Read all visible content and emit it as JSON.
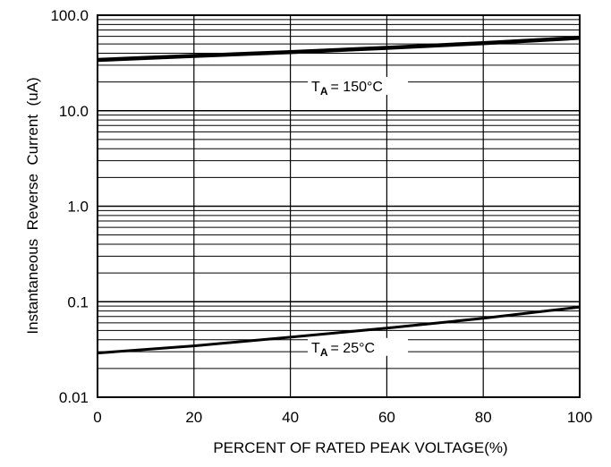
{
  "chart_data": {
    "type": "line",
    "title": "",
    "xlabel": "PERCENT OF RATED PEAK VOLTAGE(%)",
    "ylabel": "Instantaneous  Reverse  Current  (uA)",
    "xlim": [
      0,
      100
    ],
    "ylim": [
      0.01,
      100
    ],
    "yscale": "log",
    "grid": true,
    "x_ticks": [
      0,
      20,
      40,
      60,
      80,
      100
    ],
    "x_tick_labels": [
      "0",
      "20",
      "40",
      "60",
      "80",
      "100"
    ],
    "y_ticks": [
      0.01,
      0.1,
      1,
      10,
      100
    ],
    "y_tick_labels": [
      "0.01",
      "0.1",
      "1.0",
      "10.0",
      "100.0"
    ],
    "series": [
      {
        "name": "TA = 150°C",
        "label_main": "T",
        "label_sub": "A",
        "label_rest": "= 150°C",
        "x": [
          0,
          20,
          40,
          60,
          80,
          100
        ],
        "y": [
          34,
          37.5,
          41,
          45.5,
          51,
          58
        ]
      },
      {
        "name": "TA = 25°C",
        "label_main": "T",
        "label_sub": "A",
        "label_rest": "= 25°C",
        "x": [
          0,
          20,
          40,
          60,
          80,
          100
        ],
        "y": [
          0.029,
          0.0345,
          0.0425,
          0.053,
          0.067,
          0.088
        ]
      }
    ],
    "colors": {
      "line": "#000000",
      "grid": "#000000",
      "background": "#ffffff"
    }
  }
}
